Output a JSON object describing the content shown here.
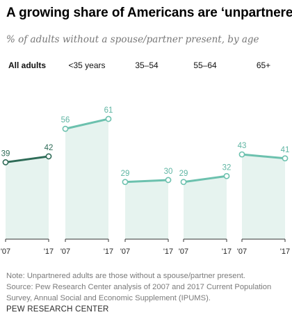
{
  "title": "A growing share of Americans are ‘unpartnered’",
  "subtitle": "% of adults without a spouse/partner present, by age",
  "chart_data": [
    {
      "type": "line",
      "panel": "All adults",
      "x": [
        "'07",
        "'17"
      ],
      "values": [
        39,
        42
      ],
      "emphasis": true
    },
    {
      "type": "line",
      "panel": "<35 years",
      "x": [
        "'07",
        "'17"
      ],
      "values": [
        56,
        61
      ],
      "emphasis": false
    },
    {
      "type": "line",
      "panel": "35–54",
      "x": [
        "'07",
        "'17"
      ],
      "values": [
        29,
        30
      ],
      "emphasis": false
    },
    {
      "type": "line",
      "panel": "55–64",
      "x": [
        "'07",
        "'17"
      ],
      "values": [
        29,
        32
      ],
      "emphasis": false
    },
    {
      "type": "line",
      "panel": "65+",
      "x": [
        "'07",
        "'17"
      ],
      "values": [
        43,
        41
      ],
      "emphasis": false
    }
  ],
  "colors": {
    "line": "#6cc1ae",
    "line_emphasis": "#2e6b57",
    "label": "#5fb5a3",
    "label_emphasis": "#2e6b57",
    "fill": "#e6f3ef",
    "axis": "#333333"
  },
  "note": {
    "line1": "Note: Unpartnered adults are those without a spouse/partner present.",
    "line2": "Source: Pew Research Center analysis of 2007 and 2017 Current Population",
    "line3": "Survey, Annual Social and Economic Supplement (IPUMS)."
  },
  "source_org": "PEW RESEARCH CENTER"
}
